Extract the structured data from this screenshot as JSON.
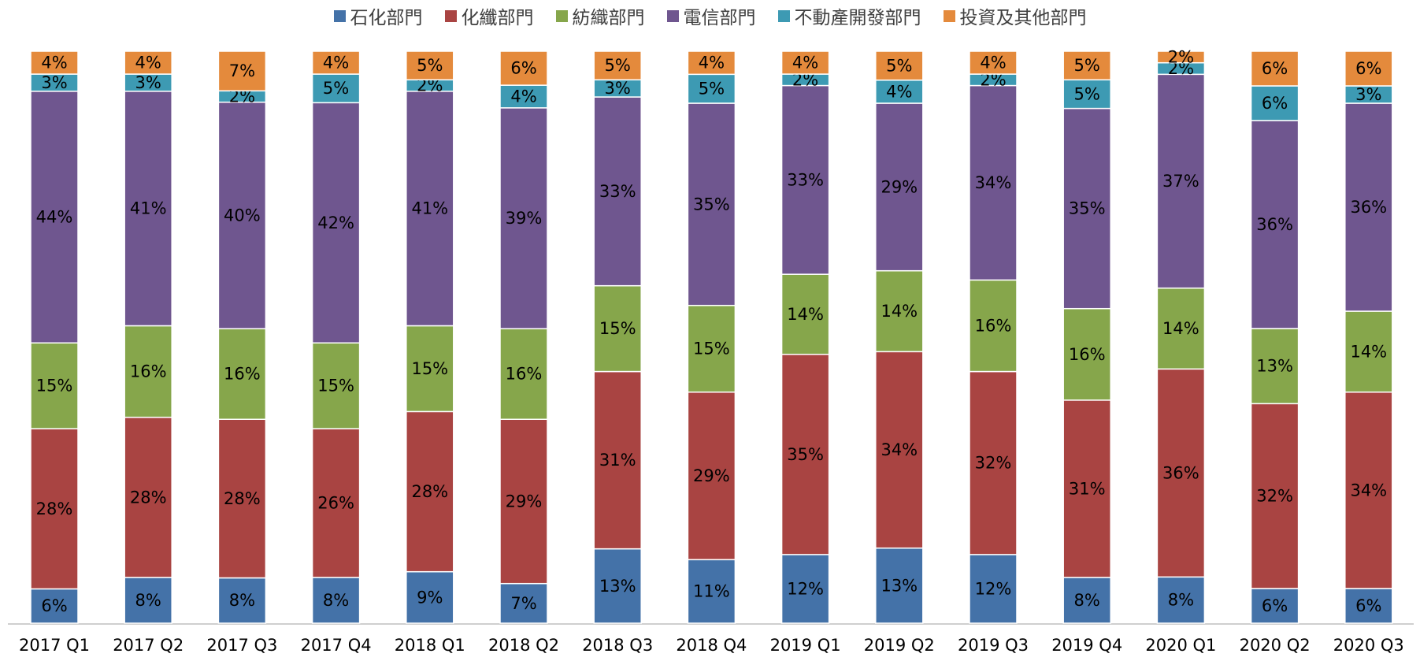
{
  "chart_data": {
    "type": "bar",
    "stacked": true,
    "percent": true,
    "title": "",
    "xlabel": "",
    "ylabel": "",
    "ylim": [
      0,
      100
    ],
    "legend_position": "top",
    "grid": false,
    "categories": [
      "2017 Q1",
      "2017 Q2",
      "2017 Q3",
      "2017 Q4",
      "2018 Q1",
      "2018 Q2",
      "2018 Q3",
      "2018 Q4",
      "2019 Q1",
      "2019 Q2",
      "2019 Q3",
      "2019 Q4",
      "2020 Q1",
      "2020 Q2",
      "2020 Q3"
    ],
    "series": [
      {
        "name": "石化部門",
        "color": "#4472a8",
        "values": [
          6,
          8,
          8,
          8,
          9,
          7,
          13,
          11,
          12,
          13,
          12,
          8,
          8,
          6,
          6
        ]
      },
      {
        "name": "化纖部門",
        "color": "#a94442",
        "values": [
          28,
          28,
          28,
          26,
          28,
          29,
          31,
          29,
          35,
          34,
          32,
          31,
          36,
          32,
          34
        ]
      },
      {
        "name": "紡織部門",
        "color": "#86a64b",
        "values": [
          15,
          16,
          16,
          15,
          15,
          16,
          15,
          15,
          14,
          14,
          16,
          16,
          14,
          13,
          14
        ]
      },
      {
        "name": "電信部門",
        "color": "#6f568f",
        "values": [
          44,
          41,
          40,
          42,
          41,
          39,
          33,
          35,
          33,
          29,
          34,
          35,
          37,
          36,
          36
        ]
      },
      {
        "name": "不動產開發部門",
        "color": "#3d9ab3",
        "values": [
          3,
          3,
          2,
          5,
          2,
          4,
          3,
          5,
          2,
          4,
          2,
          5,
          2,
          6,
          3
        ]
      },
      {
        "name": "投資及其他部門",
        "color": "#e48a3c",
        "values": [
          4,
          4,
          7,
          4,
          5,
          6,
          5,
          4,
          4,
          5,
          4,
          5,
          2,
          6,
          6
        ]
      }
    ]
  }
}
